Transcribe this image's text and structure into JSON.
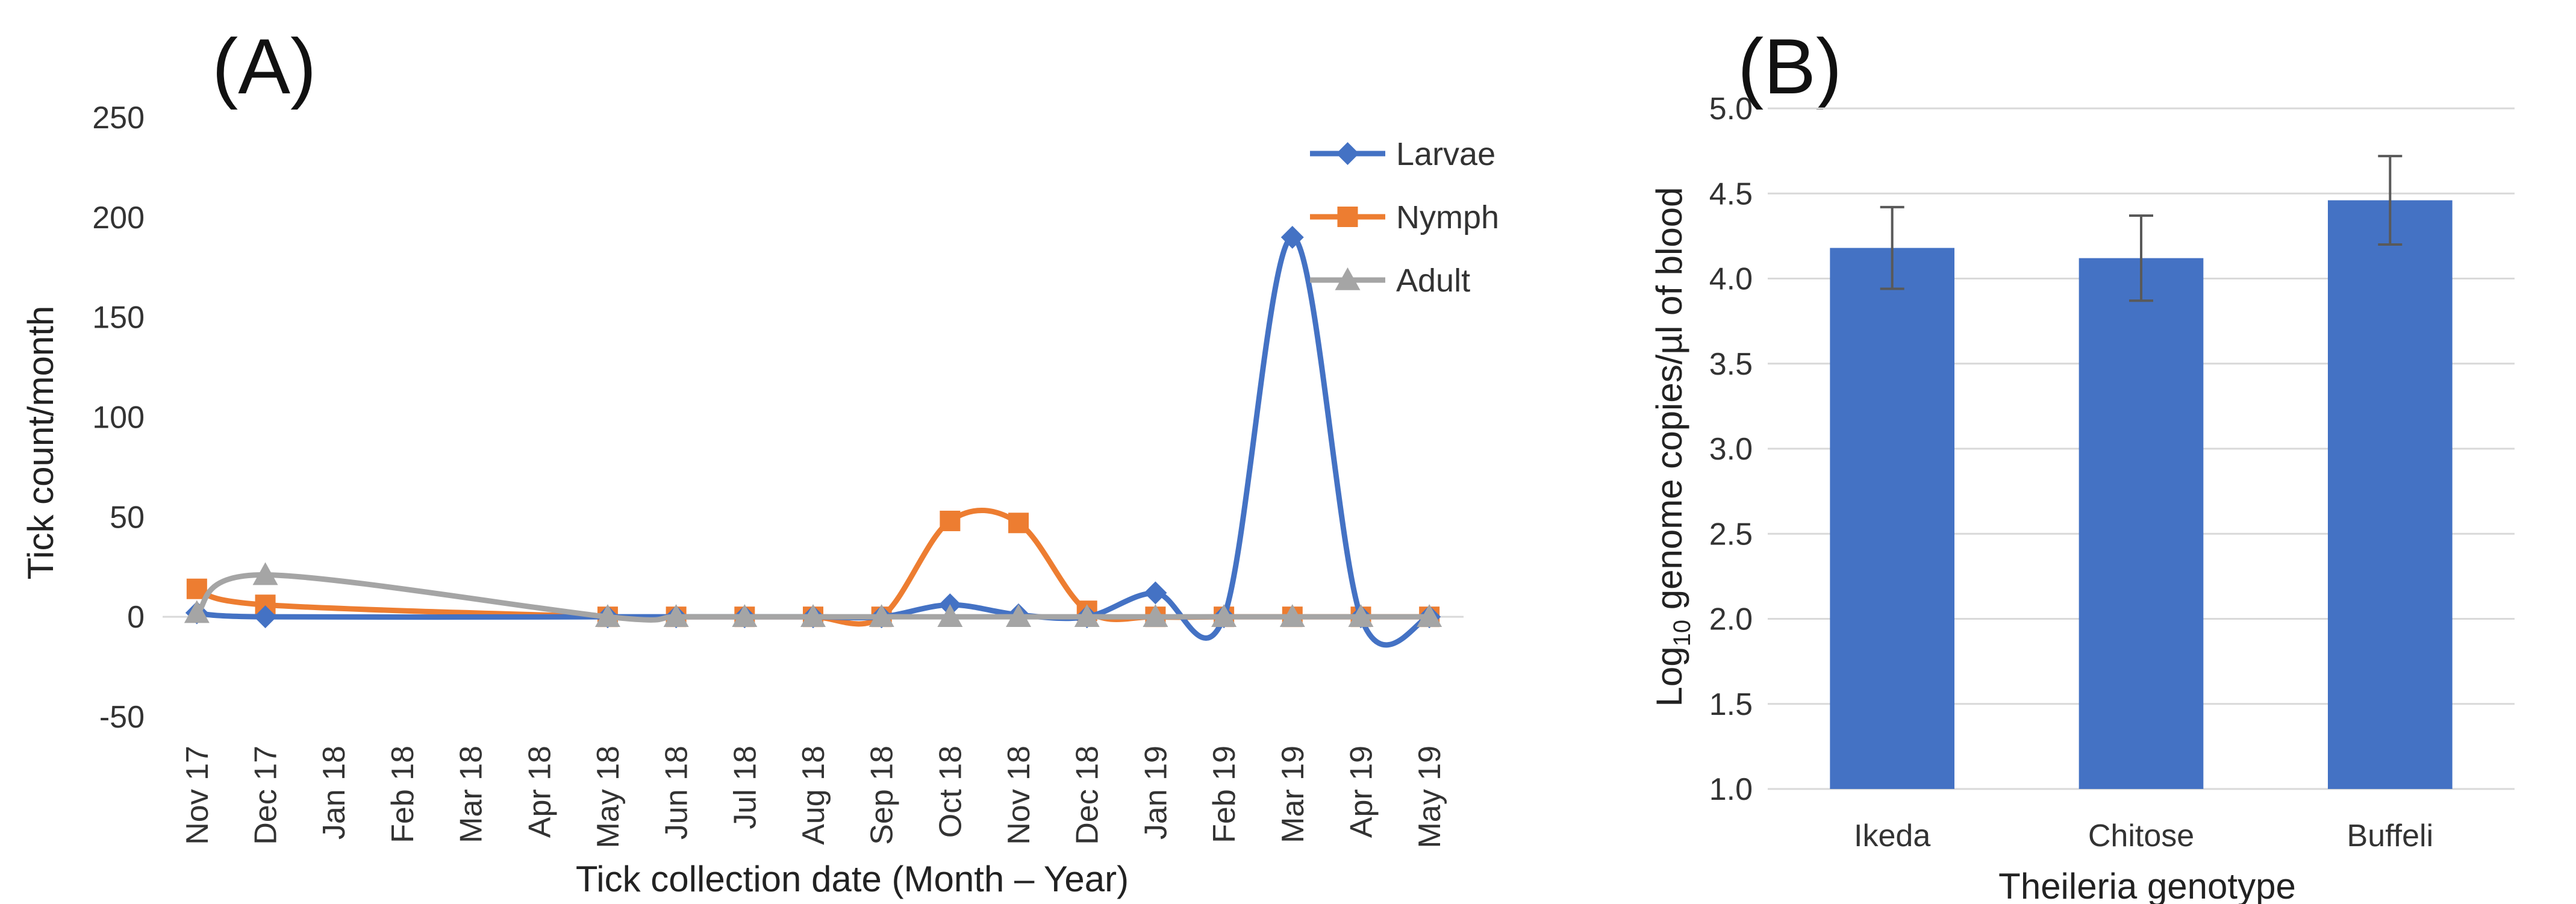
{
  "chart_data": [
    {
      "panel_label": "(A)",
      "type": "line",
      "smooth": true,
      "categories": [
        "Nov 17",
        "Dec 17",
        "Jan 18",
        "Feb 18",
        "Mar 18",
        "Apr 18",
        "May 18",
        "Jun 18",
        "Jul 18",
        "Aug 18",
        "Sep 18",
        "Oct 18",
        "Nov 18",
        "Dec 18",
        "Jan 19",
        "Feb 19",
        "Mar 19",
        "Apr 19",
        "May 19"
      ],
      "series": [
        {
          "name": "Larvae",
          "color": "#4472C4",
          "marker": "diamond",
          "values": [
            2,
            0,
            null,
            null,
            null,
            null,
            0,
            0,
            0,
            0,
            0,
            6,
            1,
            0,
            12,
            0,
            190,
            0,
            0
          ]
        },
        {
          "name": "Nymph",
          "color": "#ED7D31",
          "marker": "square",
          "values": [
            14,
            6,
            null,
            null,
            null,
            null,
            0,
            0,
            0,
            0,
            0,
            48,
            47,
            3,
            0,
            0,
            0,
            0,
            0
          ]
        },
        {
          "name": "Adult",
          "color": "#A5A5A5",
          "marker": "triangle",
          "values": [
            2,
            21,
            null,
            null,
            null,
            null,
            0,
            0,
            0,
            0,
            0,
            0,
            0,
            0,
            0,
            0,
            0,
            0,
            0
          ]
        }
      ],
      "ylim": [
        -50,
        250
      ],
      "yticks": [
        -50,
        0,
        50,
        100,
        150,
        200,
        250
      ],
      "ylabel": "Tick count/month",
      "xlabel": "Tick collection date (Month – Year)",
      "legend": "top-right",
      "grid": false
    },
    {
      "panel_label": "(B)",
      "type": "bar",
      "categories": [
        "Ikeda",
        "Chitose",
        "Buffeli"
      ],
      "values": [
        4.18,
        4.12,
        4.46
      ],
      "error": [
        0.24,
        0.25,
        0.26
      ],
      "color": "#4472C4",
      "ylim": [
        1.0,
        5.0
      ],
      "yticks": [
        "1.0",
        "1.5",
        "2.0",
        "2.5",
        "3.0",
        "3.5",
        "4.0",
        "4.5",
        "5.0"
      ],
      "ylabel_prefix": "Log",
      "ylabel_sub": "10",
      "ylabel_rest": " genome copies/µl of blood",
      "xlabel": "Theileria genotype",
      "grid": true
    }
  ]
}
